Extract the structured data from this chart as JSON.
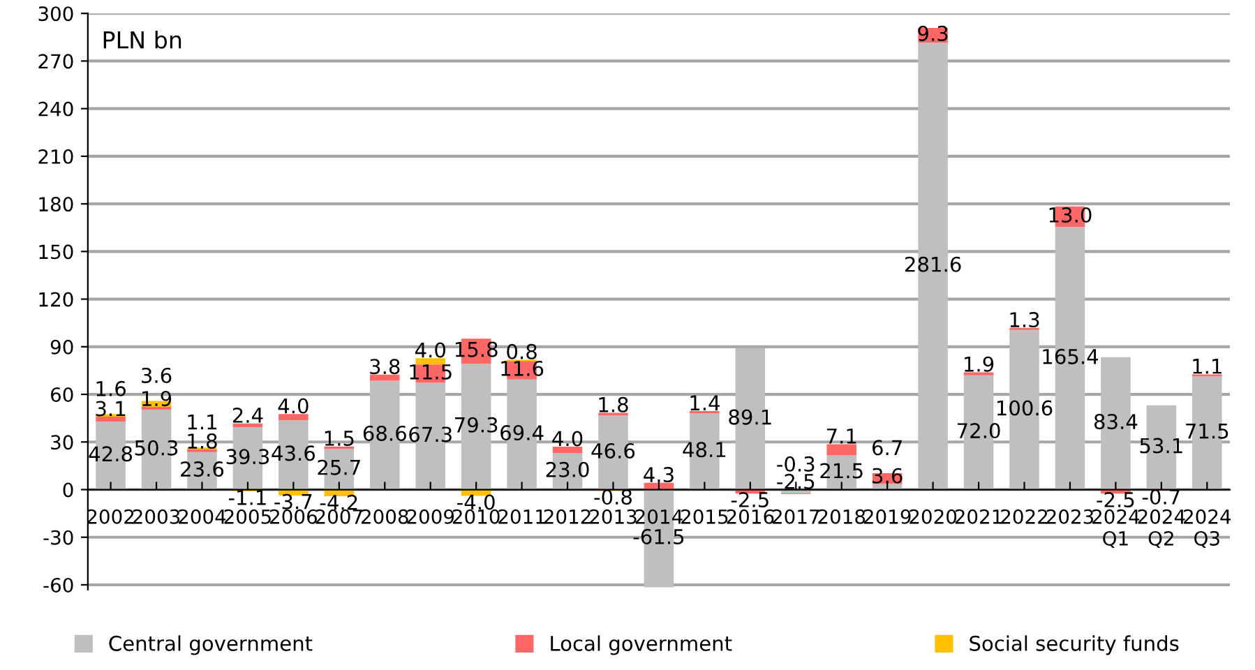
{
  "chart_data": {
    "type": "bar",
    "stacked": true,
    "categories": [
      "2002",
      "2003",
      "2004",
      "2005",
      "2006",
      "2007",
      "2008",
      "2009",
      "2010",
      "2011",
      "2012",
      "2013",
      "2014",
      "2015",
      "2016",
      "2017",
      "2018",
      "2019",
      "2020",
      "2021",
      "2022",
      "2023",
      "2024\nQ1",
      "2024\nQ2",
      "2024\nQ3"
    ],
    "series": [
      {
        "name": "Central government",
        "color": "#bfbfbf",
        "values": [
          42.8,
          50.3,
          23.6,
          39.3,
          43.6,
          25.7,
          68.6,
          67.3,
          79.3,
          69.4,
          23.0,
          46.6,
          -61.5,
          48.1,
          89.1,
          -2.5,
          21.5,
          3.6,
          281.6,
          72.0,
          100.6,
          165.4,
          83.4,
          53.1,
          71.5
        ],
        "value_labels": [
          "42.8",
          "50.3",
          "23.6",
          "39.3",
          "43.6",
          "25.7",
          "68.6",
          "67.3",
          "79.3",
          "69.4",
          "23.0",
          "46.6",
          "-61.5",
          "48.1",
          "89.1",
          "-2.5",
          "21.5",
          "3.6",
          "281.6",
          "72.0",
          "100.6",
          "165.4",
          "83.4",
          "53.1",
          "71.5"
        ]
      },
      {
        "name": "Local government",
        "color": "#ff6666",
        "values": [
          3.1,
          1.9,
          1.8,
          2.4,
          4.0,
          1.5,
          3.8,
          11.5,
          15.8,
          11.6,
          4.0,
          1.8,
          4.3,
          1.4,
          -2.5,
          -0.3,
          7.1,
          6.7,
          9.3,
          1.9,
          1.3,
          13.0,
          -2.5,
          -0.7,
          1.1
        ],
        "value_labels": [
          "3.1",
          "1.9",
          "1.8",
          "2.4",
          "4.0",
          "1.5",
          "3.8",
          "11.5",
          "15.8",
          "11.6",
          "4.0",
          "1.8",
          "4.3",
          "1.4",
          "-2.5",
          "-0.3",
          "7.1",
          "6.7",
          "9.3",
          "1.9",
          "1.3",
          "13.0",
          "-2.5",
          "-0.7",
          "1.1"
        ]
      },
      {
        "name": "Social security funds",
        "color": "#ffc000",
        "values": [
          1.6,
          3.6,
          1.1,
          -1.1,
          -3.7,
          -4.2,
          null,
          4.0,
          -4.0,
          0.8,
          null,
          -0.8,
          null,
          null,
          null,
          null,
          null,
          null,
          null,
          null,
          null,
          null,
          null,
          null,
          null
        ],
        "value_labels": [
          "1.6",
          "3.6",
          "1.1",
          "-1.1",
          "-3.7",
          "-4.2",
          null,
          "4.0",
          "-4.0",
          "0.8",
          null,
          "-0.8",
          null,
          null,
          null,
          null,
          null,
          null,
          null,
          null,
          null,
          null,
          null,
          null,
          null
        ]
      }
    ],
    "ylim": [
      -63,
      300
    ],
    "yticks": [
      -60,
      -30,
      0,
      30,
      60,
      90,
      120,
      150,
      180,
      210,
      240,
      270,
      300
    ],
    "grid": "y",
    "legend": "bottom",
    "annotations": [
      "PLN bn"
    ]
  }
}
